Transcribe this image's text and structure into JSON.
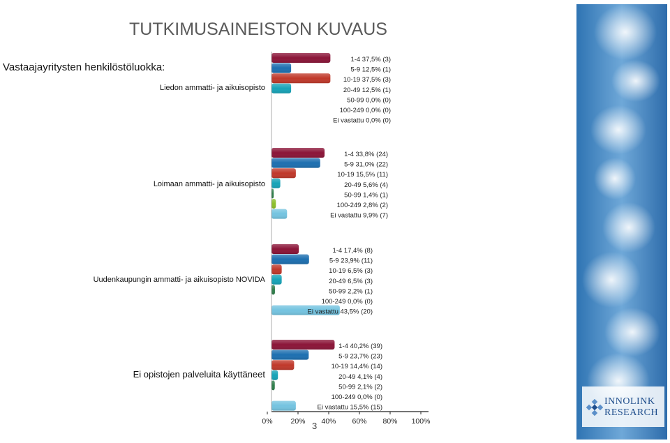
{
  "page": {
    "title": "TUTKIMUSAINEISTON KUVAUS",
    "subtitle": "Vastaajayritysten henkilöstöluokka:",
    "page_number": "3"
  },
  "logo": {
    "line1": "INNOLINK",
    "line2": "RESEARCH"
  },
  "colors": {
    "1-4": "#8b1538",
    "5-9": "#1d6fb0",
    "10-19": "#c0392b",
    "20-49": "#17a3b7",
    "50-99": "#2e7d4a",
    "100-249": "#8cbf2a",
    "Ei vastattu": "#74c3e0"
  },
  "chart_data": {
    "type": "bar",
    "orientation": "horizontal",
    "xlim": [
      0,
      100
    ],
    "x_ticks": [
      "0%",
      "20%",
      "40%",
      "60%",
      "80%",
      "100%"
    ],
    "categories": [
      "1-4",
      "5-9",
      "10-19",
      "20-49",
      "50-99",
      "100-249",
      "Ei vastattu"
    ],
    "groups": [
      {
        "name": "Liedon ammatti- ja aikuisopisto",
        "values": [
          37.5,
          12.5,
          37.5,
          12.5,
          0.0,
          0.0,
          0.0
        ],
        "labels": [
          "1-4 37,5% (3)",
          "5-9 12,5% (1)",
          "10-19 37,5% (3)",
          "20-49 12,5% (1)",
          "50-99 0,0% (0)",
          "100-249 0,0% (0)",
          "Ei vastattu 0,0% (0)"
        ]
      },
      {
        "name": "Loimaan ammatti- ja aikuisopisto",
        "values": [
          33.8,
          31.0,
          15.5,
          5.6,
          1.4,
          2.8,
          9.9
        ],
        "labels": [
          "1-4 33,8% (24)",
          "5-9 31,0% (22)",
          "10-19 15,5% (11)",
          "20-49 5,6% (4)",
          "50-99 1,4% (1)",
          "100-249 2,8% (2)",
          "Ei vastattu 9,9% (7)"
        ]
      },
      {
        "name": "Uudenkaupungin ammatti- ja aikuisopisto NOVIDA",
        "values": [
          17.4,
          23.9,
          6.5,
          6.5,
          2.2,
          0.0,
          43.5
        ],
        "labels": [
          "1-4 17,4% (8)",
          "5-9 23,9% (11)",
          "10-19 6,5% (3)",
          "20-49 6,5% (3)",
          "50-99 2,2% (1)",
          "100-249 0,0% (0)",
          "Ei vastattu 43,5% (20)"
        ]
      },
      {
        "name": "Ei opistojen palveluita käyttäneet",
        "values": [
          40.2,
          23.7,
          14.4,
          4.1,
          2.1,
          0.0,
          15.5
        ],
        "labels": [
          "1-4 40,2% (39)",
          "5-9 23,7% (23)",
          "10-19 14,4% (14)",
          "20-49 4,1% (4)",
          "50-99 2,1% (2)",
          "100-249 0,0% (0)",
          "Ei vastattu 15,5% (15)"
        ]
      }
    ]
  }
}
